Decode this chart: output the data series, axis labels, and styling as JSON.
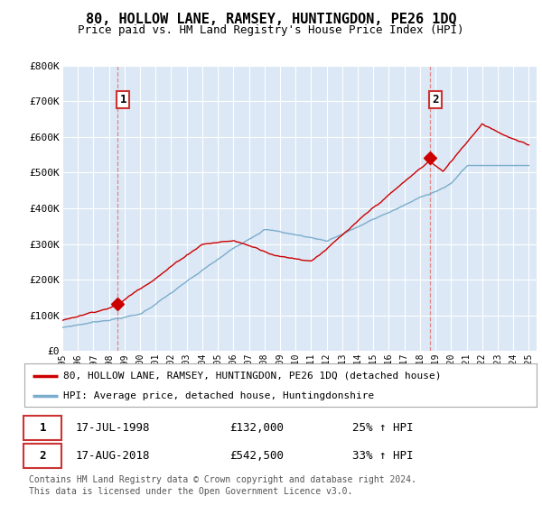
{
  "title": "80, HOLLOW LANE, RAMSEY, HUNTINGDON, PE26 1DQ",
  "subtitle": "Price paid vs. HM Land Registry's House Price Index (HPI)",
  "background_color": "#ffffff",
  "plot_bg_color": "#dce8f5",
  "grid_color": "#ffffff",
  "ylim": [
    0,
    800000
  ],
  "yticks": [
    0,
    100000,
    200000,
    300000,
    400000,
    500000,
    600000,
    700000,
    800000
  ],
  "ytick_labels": [
    "£0",
    "£100K",
    "£200K",
    "£300K",
    "£400K",
    "£500K",
    "£600K",
    "£700K",
    "£800K"
  ],
  "xlim_start": 1995.0,
  "xlim_end": 2025.5,
  "xticks": [
    1995,
    1996,
    1997,
    1998,
    1999,
    2000,
    2001,
    2002,
    2003,
    2004,
    2005,
    2006,
    2007,
    2008,
    2009,
    2010,
    2011,
    2012,
    2013,
    2014,
    2015,
    2016,
    2017,
    2018,
    2019,
    2020,
    2021,
    2022,
    2023,
    2024,
    2025
  ],
  "red_line_color": "#cc0000",
  "blue_line_color": "#7aadcc",
  "sale1_x": 1998.54,
  "sale1_y": 132000,
  "sale1_label": "1",
  "sale2_x": 2018.62,
  "sale2_y": 542500,
  "sale2_label": "2",
  "legend_line1": "80, HOLLOW LANE, RAMSEY, HUNTINGDON, PE26 1DQ (detached house)",
  "legend_line2": "HPI: Average price, detached house, Huntingdonshire",
  "table_row1": [
    "1",
    "17-JUL-1998",
    "£132,000",
    "25% ↑ HPI"
  ],
  "table_row2": [
    "2",
    "17-AUG-2018",
    "£542,500",
    "33% ↑ HPI"
  ],
  "footer": "Contains HM Land Registry data © Crown copyright and database right 2024.\nThis data is licensed under the Open Government Licence v3.0."
}
